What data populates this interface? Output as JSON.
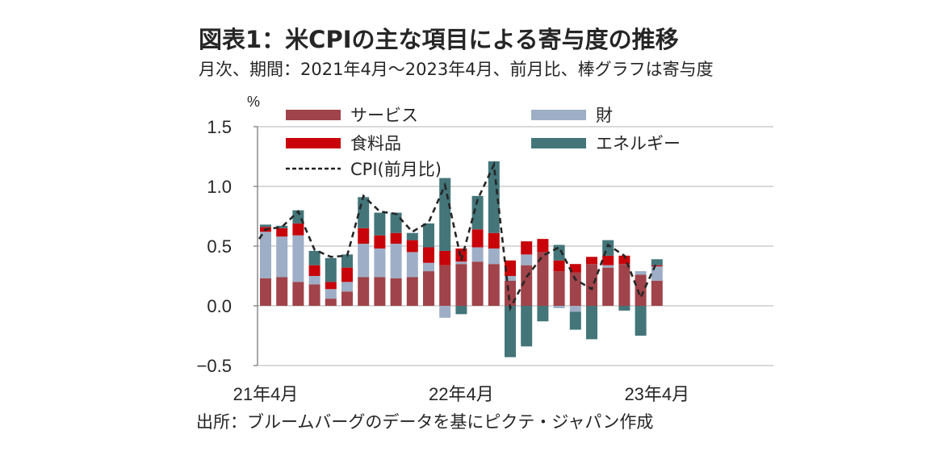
{
  "header": {
    "title": "図表1：米CPIの主な項目による寄与度の推移",
    "subtitle": "月次、期間：2021年4月～2023年4月、前月比、棒グラフは寄与度"
  },
  "footer": {
    "source": "出所：ブルームバーグのデータを基にピクテ・ジャパン作成"
  },
  "chart_data": {
    "type": "bar",
    "stacked": true,
    "title": "図表1：米CPIの主な項目による寄与度の推移",
    "subtitle": "月次、期間：2021年4月～2023年4月、前月比、棒グラフは寄与度",
    "xlabel": "",
    "ylabel": "%",
    "ylim": [
      -0.5,
      1.5
    ],
    "yticks": [
      1.5,
      1.0,
      0.5,
      0.0,
      -0.5
    ],
    "ytick_labels": [
      "1.5",
      "1.0",
      "0.5",
      "0.0",
      "−0.5"
    ],
    "xtick_labels": [
      {
        "index": 0,
        "label": "21年4月"
      },
      {
        "index": 12,
        "label": "22年4月"
      },
      {
        "index": 24,
        "label": "23年4月"
      }
    ],
    "grid": true,
    "legend": "top",
    "categories": [
      "2021-04",
      "2021-05",
      "2021-06",
      "2021-07",
      "2021-08",
      "2021-09",
      "2021-10",
      "2021-11",
      "2021-12",
      "2022-01",
      "2022-02",
      "2022-03",
      "2022-04",
      "2022-05",
      "2022-06",
      "2022-07",
      "2022-08",
      "2022-09",
      "2022-10",
      "2022-11",
      "2022-12",
      "2023-01",
      "2023-02",
      "2023-03",
      "2023-04"
    ],
    "series": [
      {
        "name": "サービス",
        "color": "#a0434a",
        "values": [
          0.23,
          0.24,
          0.2,
          0.18,
          0.06,
          0.12,
          0.24,
          0.24,
          0.23,
          0.24,
          0.29,
          0.34,
          0.35,
          0.37,
          0.35,
          0.21,
          0.34,
          0.45,
          0.29,
          0.28,
          0.35,
          0.32,
          0.35,
          0.26,
          0.21
        ]
      },
      {
        "name": "財",
        "color": "#9eaec6",
        "values": [
          0.39,
          0.34,
          0.39,
          0.07,
          0.08,
          0.08,
          0.28,
          0.24,
          0.29,
          0.21,
          0.07,
          -0.1,
          0.02,
          0.12,
          0.13,
          0.04,
          0.09,
          0.0,
          -0.02,
          -0.05,
          0.0,
          0.02,
          0.0,
          0.03,
          0.12
        ]
      },
      {
        "name": "食料品",
        "color": "#c8040a",
        "values": [
          0.04,
          0.07,
          0.1,
          0.09,
          0.06,
          0.12,
          0.13,
          0.11,
          0.09,
          0.1,
          0.13,
          0.12,
          0.11,
          0.15,
          0.13,
          0.13,
          0.11,
          0.11,
          0.09,
          0.07,
          0.06,
          0.08,
          0.07,
          0.0,
          0.01
        ]
      },
      {
        "name": "エネルギー",
        "color": "#437579",
        "values": [
          0.02,
          0.02,
          0.11,
          0.12,
          0.2,
          0.11,
          0.26,
          0.19,
          0.17,
          0.06,
          0.2,
          0.61,
          -0.07,
          0.28,
          0.6,
          -0.43,
          -0.34,
          -0.13,
          0.13,
          -0.15,
          -0.28,
          0.13,
          -0.04,
          -0.25,
          0.05
        ]
      }
    ],
    "line": {
      "name": "CPI(前月比)",
      "style": "dashed",
      "color": "#222222",
      "values": [
        0.64,
        0.66,
        0.79,
        0.47,
        0.41,
        0.42,
        0.92,
        0.79,
        0.77,
        0.62,
        0.7,
        1.01,
        0.38,
        0.89,
        1.18,
        -0.02,
        0.24,
        0.42,
        0.49,
        0.22,
        0.14,
        0.51,
        0.42,
        0.07,
        0.37
      ],
      "start_value": 0.56
    }
  }
}
